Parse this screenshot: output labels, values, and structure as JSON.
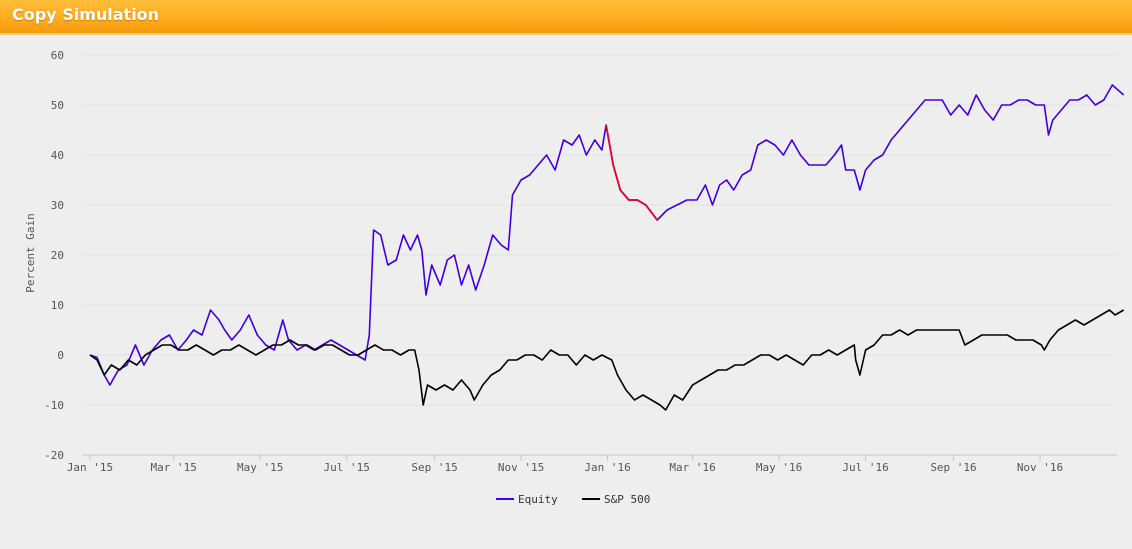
{
  "header": {
    "title": "Copy Simulation"
  },
  "colors": {
    "header_bg": "#ffab1f",
    "equity": "#3b00e6",
    "equity_drawdown": "#e8002a",
    "sp500": "#000000",
    "grid": "#e2e2e2",
    "background": "#eeeeee"
  },
  "chart_data": {
    "type": "line",
    "ylabel": "Percent Gain",
    "xlabel": "",
    "ylim": [
      -20,
      60
    ],
    "yticks": [
      60,
      50,
      40,
      30,
      20,
      10,
      0,
      -10,
      -20
    ],
    "grid": true,
    "legend_position": "bottom-center",
    "x_ticks": [
      {
        "date": "2015-01-01",
        "label": "Jan '15"
      },
      {
        "date": "2015-03-01",
        "label": "Mar '15"
      },
      {
        "date": "2015-05-01",
        "label": "May '15"
      },
      {
        "date": "2015-07-01",
        "label": "Jul '15"
      },
      {
        "date": "2015-09-01",
        "label": "Sep '15"
      },
      {
        "date": "2015-11-01",
        "label": "Nov '15"
      },
      {
        "date": "2016-01-01",
        "label": "Jan '16"
      },
      {
        "date": "2016-03-01",
        "label": "Mar '16"
      },
      {
        "date": "2016-05-01",
        "label": "May '16"
      },
      {
        "date": "2016-07-01",
        "label": "Jul '16"
      },
      {
        "date": "2016-09-01",
        "label": "Sep '16"
      },
      {
        "date": "2016-11-01",
        "label": "Nov '16"
      }
    ],
    "x_range": [
      "2015-01-01",
      "2016-12-31"
    ],
    "highlight": {
      "series": "Equity",
      "from": "2015-12-31",
      "to": "2016-02-05"
    },
    "series": [
      {
        "name": "Equity",
        "points": [
          [
            "2015-01-01",
            0
          ],
          [
            "2015-01-06",
            -0.5
          ],
          [
            "2015-01-11",
            -4
          ],
          [
            "2015-01-15",
            -6
          ],
          [
            "2015-01-21",
            -3
          ],
          [
            "2015-01-27",
            -2
          ],
          [
            "2015-02-02",
            2
          ],
          [
            "2015-02-08",
            -2
          ],
          [
            "2015-02-14",
            1
          ],
          [
            "2015-02-20",
            3
          ],
          [
            "2015-02-26",
            4
          ],
          [
            "2015-03-04",
            1
          ],
          [
            "2015-03-10",
            3
          ],
          [
            "2015-03-15",
            5
          ],
          [
            "2015-03-21",
            4
          ],
          [
            "2015-03-27",
            9
          ],
          [
            "2015-04-02",
            7
          ],
          [
            "2015-04-06",
            5
          ],
          [
            "2015-04-11",
            3
          ],
          [
            "2015-04-17",
            5
          ],
          [
            "2015-04-23",
            8
          ],
          [
            "2015-04-29",
            4
          ],
          [
            "2015-05-05",
            2
          ],
          [
            "2015-05-11",
            1
          ],
          [
            "2015-05-17",
            7
          ],
          [
            "2015-05-21",
            3
          ],
          [
            "2015-05-27",
            1
          ],
          [
            "2015-06-02",
            2
          ],
          [
            "2015-06-08",
            1
          ],
          [
            "2015-06-14",
            2
          ],
          [
            "2015-06-20",
            3
          ],
          [
            "2015-06-26",
            2
          ],
          [
            "2015-07-02",
            1
          ],
          [
            "2015-07-08",
            0
          ],
          [
            "2015-07-14",
            -1
          ],
          [
            "2015-07-17",
            4
          ],
          [
            "2015-07-20",
            25
          ],
          [
            "2015-07-25",
            24
          ],
          [
            "2015-07-30",
            18
          ],
          [
            "2015-08-05",
            19
          ],
          [
            "2015-08-10",
            24
          ],
          [
            "2015-08-15",
            21
          ],
          [
            "2015-08-20",
            24
          ],
          [
            "2015-08-23",
            21
          ],
          [
            "2015-08-26",
            12
          ],
          [
            "2015-08-30",
            18
          ],
          [
            "2015-09-05",
            14
          ],
          [
            "2015-09-10",
            19
          ],
          [
            "2015-09-15",
            20
          ],
          [
            "2015-09-20",
            14
          ],
          [
            "2015-09-25",
            18
          ],
          [
            "2015-09-30",
            13
          ],
          [
            "2015-10-06",
            18
          ],
          [
            "2015-10-12",
            24
          ],
          [
            "2015-10-18",
            22
          ],
          [
            "2015-10-23",
            21
          ],
          [
            "2015-10-26",
            32
          ],
          [
            "2015-11-01",
            35
          ],
          [
            "2015-11-07",
            36
          ],
          [
            "2015-11-13",
            38
          ],
          [
            "2015-11-19",
            40
          ],
          [
            "2015-11-25",
            37
          ],
          [
            "2015-12-01",
            43
          ],
          [
            "2015-12-07",
            42
          ],
          [
            "2015-12-12",
            44
          ],
          [
            "2015-12-17",
            40
          ],
          [
            "2015-12-23",
            43
          ],
          [
            "2015-12-28",
            41
          ],
          [
            "2015-12-31",
            46
          ],
          [
            "2016-01-05",
            38
          ],
          [
            "2016-01-10",
            33
          ],
          [
            "2016-01-16",
            31
          ],
          [
            "2016-01-22",
            31
          ],
          [
            "2016-01-28",
            30
          ],
          [
            "2016-02-05",
            27
          ],
          [
            "2016-02-12",
            29
          ],
          [
            "2016-02-19",
            30
          ],
          [
            "2016-02-26",
            31
          ],
          [
            "2016-03-04",
            31
          ],
          [
            "2016-03-10",
            34
          ],
          [
            "2016-03-15",
            30
          ],
          [
            "2016-03-20",
            34
          ],
          [
            "2016-03-25",
            35
          ],
          [
            "2016-03-30",
            33
          ],
          [
            "2016-04-05",
            36
          ],
          [
            "2016-04-11",
            37
          ],
          [
            "2016-04-16",
            42
          ],
          [
            "2016-04-22",
            43
          ],
          [
            "2016-04-28",
            42
          ],
          [
            "2016-05-04",
            40
          ],
          [
            "2016-05-10",
            43
          ],
          [
            "2016-05-16",
            40
          ],
          [
            "2016-05-22",
            38
          ],
          [
            "2016-05-28",
            38
          ],
          [
            "2016-06-03",
            38
          ],
          [
            "2016-06-09",
            40
          ],
          [
            "2016-06-14",
            42
          ],
          [
            "2016-06-17",
            37
          ],
          [
            "2016-06-23",
            37
          ],
          [
            "2016-06-27",
            33
          ],
          [
            "2016-07-01",
            37
          ],
          [
            "2016-07-07",
            39
          ],
          [
            "2016-07-13",
            40
          ],
          [
            "2016-07-19",
            43
          ],
          [
            "2016-07-25",
            45
          ],
          [
            "2016-07-31",
            47
          ],
          [
            "2016-08-06",
            49
          ],
          [
            "2016-08-12",
            51
          ],
          [
            "2016-08-18",
            51
          ],
          [
            "2016-08-24",
            51
          ],
          [
            "2016-08-30",
            48
          ],
          [
            "2016-09-05",
            50
          ],
          [
            "2016-09-11",
            48
          ],
          [
            "2016-09-17",
            52
          ],
          [
            "2016-09-23",
            49
          ],
          [
            "2016-09-29",
            47
          ],
          [
            "2016-10-05",
            50
          ],
          [
            "2016-10-11",
            50
          ],
          [
            "2016-10-17",
            51
          ],
          [
            "2016-10-23",
            51
          ],
          [
            "2016-10-29",
            50
          ],
          [
            "2016-11-04",
            50
          ],
          [
            "2016-11-07",
            44
          ],
          [
            "2016-11-10",
            47
          ],
          [
            "2016-11-16",
            49
          ],
          [
            "2016-11-22",
            51
          ],
          [
            "2016-11-28",
            51
          ],
          [
            "2016-12-04",
            52
          ],
          [
            "2016-12-10",
            50
          ],
          [
            "2016-12-16",
            51
          ],
          [
            "2016-12-22",
            54
          ],
          [
            "2016-12-26",
            53
          ],
          [
            "2016-12-30",
            52
          ]
        ]
      },
      {
        "name": "S&P 500",
        "points": [
          [
            "2015-01-01",
            0
          ],
          [
            "2015-01-06",
            -1
          ],
          [
            "2015-01-11",
            -4
          ],
          [
            "2015-01-16",
            -2
          ],
          [
            "2015-01-22",
            -3
          ],
          [
            "2015-01-28",
            -1
          ],
          [
            "2015-02-03",
            -2
          ],
          [
            "2015-02-09",
            0
          ],
          [
            "2015-02-15",
            1
          ],
          [
            "2015-02-21",
            2
          ],
          [
            "2015-02-27",
            2
          ],
          [
            "2015-03-05",
            1
          ],
          [
            "2015-03-11",
            1
          ],
          [
            "2015-03-17",
            2
          ],
          [
            "2015-03-23",
            1
          ],
          [
            "2015-03-29",
            0
          ],
          [
            "2015-04-04",
            1
          ],
          [
            "2015-04-10",
            1
          ],
          [
            "2015-04-16",
            2
          ],
          [
            "2015-04-22",
            1
          ],
          [
            "2015-04-28",
            0
          ],
          [
            "2015-05-04",
            1
          ],
          [
            "2015-05-10",
            2
          ],
          [
            "2015-05-16",
            2
          ],
          [
            "2015-05-22",
            3
          ],
          [
            "2015-05-28",
            2
          ],
          [
            "2015-06-03",
            2
          ],
          [
            "2015-06-09",
            1
          ],
          [
            "2015-06-15",
            2
          ],
          [
            "2015-06-21",
            2
          ],
          [
            "2015-06-27",
            1
          ],
          [
            "2015-07-03",
            0
          ],
          [
            "2015-07-09",
            0
          ],
          [
            "2015-07-15",
            1
          ],
          [
            "2015-07-21",
            2
          ],
          [
            "2015-07-27",
            1
          ],
          [
            "2015-08-02",
            1
          ],
          [
            "2015-08-08",
            0
          ],
          [
            "2015-08-14",
            1
          ],
          [
            "2015-08-18",
            1
          ],
          [
            "2015-08-21",
            -3
          ],
          [
            "2015-08-24",
            -10
          ],
          [
            "2015-08-27",
            -6
          ],
          [
            "2015-09-02",
            -7
          ],
          [
            "2015-09-08",
            -6
          ],
          [
            "2015-09-14",
            -7
          ],
          [
            "2015-09-20",
            -5
          ],
          [
            "2015-09-26",
            -7
          ],
          [
            "2015-09-29",
            -9
          ],
          [
            "2015-10-05",
            -6
          ],
          [
            "2015-10-11",
            -4
          ],
          [
            "2015-10-17",
            -3
          ],
          [
            "2015-10-23",
            -1
          ],
          [
            "2015-10-29",
            -1
          ],
          [
            "2015-11-04",
            0
          ],
          [
            "2015-11-10",
            0
          ],
          [
            "2015-11-16",
            -1
          ],
          [
            "2015-11-22",
            1
          ],
          [
            "2015-11-28",
            0
          ],
          [
            "2015-12-04",
            0
          ],
          [
            "2015-12-10",
            -2
          ],
          [
            "2015-12-16",
            0
          ],
          [
            "2015-12-22",
            -1
          ],
          [
            "2015-12-28",
            0
          ],
          [
            "2016-01-04",
            -1
          ],
          [
            "2016-01-08",
            -4
          ],
          [
            "2016-01-14",
            -7
          ],
          [
            "2016-01-20",
            -9
          ],
          [
            "2016-01-26",
            -8
          ],
          [
            "2016-02-01",
            -9
          ],
          [
            "2016-02-07",
            -10
          ],
          [
            "2016-02-11",
            -11
          ],
          [
            "2016-02-17",
            -8
          ],
          [
            "2016-02-23",
            -9
          ],
          [
            "2016-03-01",
            -6
          ],
          [
            "2016-03-07",
            -5
          ],
          [
            "2016-03-13",
            -4
          ],
          [
            "2016-03-19",
            -3
          ],
          [
            "2016-03-25",
            -3
          ],
          [
            "2016-03-31",
            -2
          ],
          [
            "2016-04-06",
            -2
          ],
          [
            "2016-04-12",
            -1
          ],
          [
            "2016-04-18",
            0
          ],
          [
            "2016-04-24",
            0
          ],
          [
            "2016-04-30",
            -1
          ],
          [
            "2016-05-06",
            0
          ],
          [
            "2016-05-12",
            -1
          ],
          [
            "2016-05-18",
            -2
          ],
          [
            "2016-05-24",
            0
          ],
          [
            "2016-05-30",
            0
          ],
          [
            "2016-06-05",
            1
          ],
          [
            "2016-06-11",
            0
          ],
          [
            "2016-06-17",
            1
          ],
          [
            "2016-06-23",
            2
          ],
          [
            "2016-06-24",
            -1
          ],
          [
            "2016-06-27",
            -4
          ],
          [
            "2016-07-01",
            1
          ],
          [
            "2016-07-07",
            2
          ],
          [
            "2016-07-13",
            4
          ],
          [
            "2016-07-19",
            4
          ],
          [
            "2016-07-25",
            5
          ],
          [
            "2016-07-31",
            4
          ],
          [
            "2016-08-06",
            5
          ],
          [
            "2016-08-12",
            5
          ],
          [
            "2016-08-18",
            5
          ],
          [
            "2016-08-24",
            5
          ],
          [
            "2016-08-30",
            5
          ],
          [
            "2016-09-05",
            5
          ],
          [
            "2016-09-09",
            2
          ],
          [
            "2016-09-15",
            3
          ],
          [
            "2016-09-21",
            4
          ],
          [
            "2016-09-27",
            4
          ],
          [
            "2016-10-03",
            4
          ],
          [
            "2016-10-09",
            4
          ],
          [
            "2016-10-15",
            3
          ],
          [
            "2016-10-21",
            3
          ],
          [
            "2016-10-27",
            3
          ],
          [
            "2016-11-02",
            2
          ],
          [
            "2016-11-04",
            1
          ],
          [
            "2016-11-08",
            3
          ],
          [
            "2016-11-14",
            5
          ],
          [
            "2016-11-20",
            6
          ],
          [
            "2016-11-26",
            7
          ],
          [
            "2016-12-02",
            6
          ],
          [
            "2016-12-08",
            7
          ],
          [
            "2016-12-14",
            8
          ],
          [
            "2016-12-20",
            9
          ],
          [
            "2016-12-24",
            8
          ],
          [
            "2016-12-30",
            9
          ]
        ]
      }
    ]
  }
}
